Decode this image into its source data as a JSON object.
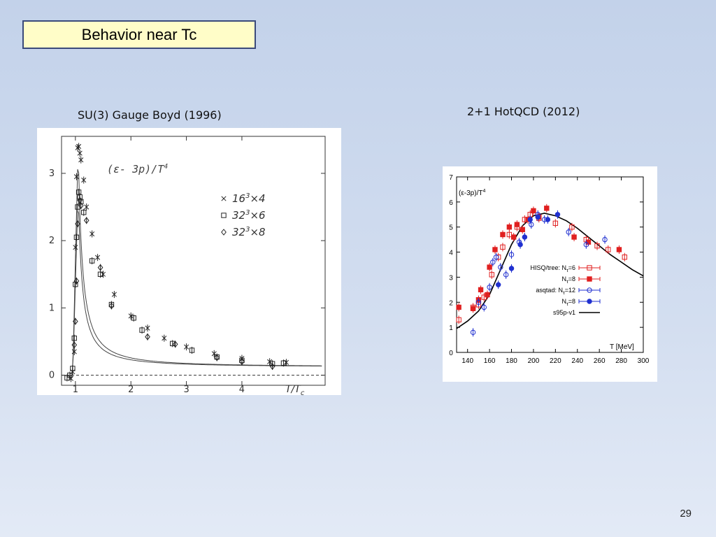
{
  "slide": {
    "title": "Behavior near Tc",
    "page_number": "29",
    "left_caption": "SU(3) Gauge Boyd (1996)",
    "right_caption": "2+1 HotQCD (2012)"
  },
  "chart_data": [
    {
      "type": "scatter",
      "title": "(ε- 3p)/T",
      "title_sup": "4",
      "xlabel": "T/T",
      "xlabel_sub": "c",
      "ylabel": "",
      "xlim": [
        0.75,
        5.5
      ],
      "ylim": [
        -0.15,
        3.55
      ],
      "x_ticks": [
        "1",
        "2",
        "3",
        "4"
      ],
      "y_ticks": [
        "0",
        "1",
        "2",
        "3"
      ],
      "grid": false,
      "legend_position": "right",
      "legend_labels": [
        {
          "base": "16",
          "sup": "3",
          "rest": "×4"
        },
        {
          "base": "32",
          "sup": "3",
          "rest": "×6"
        },
        {
          "base": "32",
          "sup": "3",
          "rest": "×8"
        }
      ],
      "series": [
        {
          "name": "16³×4",
          "marker": "x",
          "points": [
            [
              0.92,
              -0.05
            ],
            [
              0.95,
              0.05
            ],
            [
              0.98,
              0.35
            ],
            [
              1.0,
              1.9
            ],
            [
              1.02,
              2.95
            ],
            [
              1.04,
              3.38
            ],
            [
              1.06,
              3.4
            ],
            [
              1.08,
              3.3
            ],
            [
              1.1,
              3.2
            ],
            [
              1.15,
              2.9
            ],
            [
              1.2,
              2.5
            ],
            [
              1.3,
              2.1
            ],
            [
              1.4,
              1.75
            ],
            [
              1.5,
              1.5
            ],
            [
              1.7,
              1.2
            ],
            [
              2.0,
              0.88
            ],
            [
              2.3,
              0.7
            ],
            [
              2.6,
              0.55
            ],
            [
              3.0,
              0.42
            ],
            [
              3.5,
              0.32
            ],
            [
              4.0,
              0.25
            ],
            [
              4.5,
              0.2
            ],
            [
              4.8,
              0.19
            ]
          ]
        },
        {
          "name": "32³×6",
          "marker": "square",
          "points": [
            [
              0.85,
              -0.04
            ],
            [
              0.9,
              0.0
            ],
            [
              0.95,
              0.1
            ],
            [
              0.98,
              0.55
            ],
            [
              1.0,
              1.35
            ],
            [
              1.02,
              2.05
            ],
            [
              1.04,
              2.5
            ],
            [
              1.06,
              2.72
            ],
            [
              1.08,
              2.65
            ],
            [
              1.1,
              2.58
            ],
            [
              1.15,
              2.42
            ],
            [
              1.3,
              1.7
            ],
            [
              1.45,
              1.5
            ],
            [
              1.65,
              1.05
            ],
            [
              2.05,
              0.85
            ],
            [
              2.2,
              0.67
            ],
            [
              2.75,
              0.47
            ],
            [
              3.1,
              0.37
            ],
            [
              3.55,
              0.27
            ],
            [
              4.0,
              0.22
            ],
            [
              4.55,
              0.17
            ],
            [
              4.75,
              0.18
            ]
          ]
        },
        {
          "name": "32³×8",
          "marker": "diamond",
          "points": [
            [
              0.98,
              0.45
            ],
            [
              1.0,
              0.8
            ],
            [
              1.02,
              1.4
            ],
            [
              1.04,
              2.25
            ],
            [
              1.08,
              2.6
            ],
            [
              1.1,
              2.52
            ],
            [
              1.2,
              2.3
            ],
            [
              1.45,
              1.6
            ],
            [
              1.65,
              1.03
            ],
            [
              2.3,
              0.57
            ],
            [
              2.8,
              0.46
            ],
            [
              3.55,
              0.26
            ],
            [
              4.0,
              0.2
            ],
            [
              4.55,
              0.13
            ]
          ]
        }
      ]
    },
    {
      "type": "scatter",
      "title": "(ε-3p)/T",
      "title_sup": "4",
      "xlabel": "T [MeV]",
      "ylabel": "",
      "xlim": [
        130,
        300
      ],
      "ylim": [
        0,
        7
      ],
      "x_ticks": [
        140,
        160,
        180,
        200,
        220,
        240,
        260,
        280,
        300
      ],
      "y_ticks": [
        0,
        1,
        2,
        3,
        4,
        5,
        6,
        7
      ],
      "grid": false,
      "legend_position": "right",
      "legend_labels": [
        {
          "prefix": "HISQ/tree: N",
          "sub": "τ",
          "rest": "=6"
        },
        {
          "prefix": "N",
          "sub": "τ",
          "rest": "=8"
        },
        {
          "prefix": "asqtad: N",
          "sub": "τ",
          "rest": "=12"
        },
        {
          "prefix": "N",
          "sub": "τ",
          "rest": "=8"
        },
        {
          "prefix": "s95p-v1",
          "sub": "",
          "rest": ""
        }
      ],
      "series": [
        {
          "name": "HISQ/tree: Nτ=6",
          "marker": "open-square",
          "color": "#e02020",
          "points": [
            [
              132,
              1.3
            ],
            [
              145,
              1.8
            ],
            [
              150,
              1.9
            ],
            [
              155,
              2.2
            ],
            [
              162,
              3.1
            ],
            [
              168,
              3.8
            ],
            [
              172,
              4.2
            ],
            [
              178,
              4.7
            ],
            [
              185,
              5.0
            ],
            [
              192,
              5.3
            ],
            [
              197,
              5.5
            ],
            [
              205,
              5.35
            ],
            [
              220,
              5.15
            ],
            [
              235,
              5.0
            ],
            [
              248,
              4.5
            ],
            [
              258,
              4.25
            ],
            [
              268,
              4.1
            ],
            [
              283,
              3.8
            ]
          ]
        },
        {
          "name": "HISQ/tree: Nτ=8",
          "marker": "filled-square",
          "color": "#e02020",
          "points": [
            [
              132,
              1.8
            ],
            [
              145,
              1.75
            ],
            [
              150,
              2.1
            ],
            [
              152,
              2.5
            ],
            [
              158,
              2.3
            ],
            [
              160,
              3.4
            ],
            [
              165,
              4.1
            ],
            [
              172,
              4.7
            ],
            [
              178,
              5.0
            ],
            [
              182,
              4.6
            ],
            [
              185,
              5.1
            ],
            [
              190,
              4.9
            ],
            [
              195,
              5.3
            ],
            [
              200,
              5.65
            ],
            [
              205,
              5.4
            ],
            [
              212,
              5.75
            ],
            [
              237,
              4.6
            ],
            [
              250,
              4.4
            ],
            [
              278,
              4.1
            ]
          ]
        },
        {
          "name": "asqtad: Nτ=12",
          "marker": "open-circle",
          "color": "#2030d0",
          "points": [
            [
              145,
              0.8
            ],
            [
              150,
              2.0
            ],
            [
              155,
              1.8
            ],
            [
              160,
              2.6
            ],
            [
              163,
              3.6
            ],
            [
              166,
              3.8
            ],
            [
              170,
              3.4
            ],
            [
              175,
              3.1
            ],
            [
              180,
              3.9
            ],
            [
              187,
              4.4
            ],
            [
              192,
              4.6
            ],
            [
              198,
              5.1
            ],
            [
              204,
              5.5
            ],
            [
              210,
              5.3
            ],
            [
              232,
              4.8
            ],
            [
              248,
              4.3
            ],
            [
              265,
              4.5
            ]
          ]
        },
        {
          "name": "asqtad: Nτ=8",
          "marker": "filled-circle",
          "color": "#2030d0",
          "points": [
            [
              168,
              2.7
            ],
            [
              180,
              3.35
            ],
            [
              188,
              4.3
            ],
            [
              192,
              4.6
            ],
            [
              197,
              5.3
            ],
            [
              204,
              5.4
            ],
            [
              213,
              5.3
            ],
            [
              222,
              5.5
            ]
          ]
        }
      ],
      "curve": {
        "name": "s95p-v1",
        "color": "#000000",
        "x": [
          130,
          140,
          150,
          160,
          170,
          180,
          190,
          200,
          210,
          220,
          230,
          240,
          250,
          260,
          270,
          280,
          290,
          300
        ],
        "y": [
          0.95,
          1.25,
          1.65,
          2.3,
          3.3,
          4.3,
          5.05,
          5.45,
          5.55,
          5.45,
          5.25,
          4.95,
          4.6,
          4.25,
          3.9,
          3.6,
          3.3,
          3.05
        ]
      }
    }
  ]
}
